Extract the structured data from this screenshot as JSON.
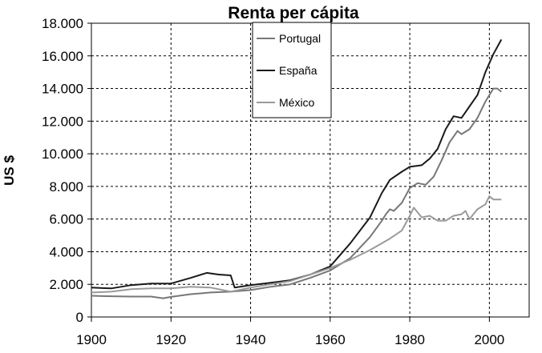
{
  "chart_data": {
    "type": "line",
    "title": "Renta per cápita",
    "xlabel": "",
    "ylabel": "US $",
    "xlim": [
      1900,
      2010
    ],
    "ylim": [
      0,
      18000
    ],
    "x_ticks": [
      1900,
      1920,
      1940,
      1960,
      1980,
      2000
    ],
    "x_tick_labels": [
      "1900",
      "1920",
      "1940",
      "1960",
      "1980",
      "2000"
    ],
    "y_ticks": [
      0,
      2000,
      4000,
      6000,
      8000,
      10000,
      12000,
      14000,
      16000,
      18000
    ],
    "y_tick_labels": [
      "0",
      "2.000",
      "4.000",
      "6.000",
      "8.000",
      "10.000",
      "12.000",
      "14.000",
      "16.000",
      "18.000"
    ],
    "grid": true,
    "legend_position": "top-center",
    "series": [
      {
        "name": "Portugal",
        "color": "#777777",
        "points": [
          [
            1900,
            1300
          ],
          [
            1905,
            1270
          ],
          [
            1910,
            1250
          ],
          [
            1915,
            1250
          ],
          [
            1918,
            1150
          ],
          [
            1920,
            1230
          ],
          [
            1925,
            1400
          ],
          [
            1930,
            1500
          ],
          [
            1935,
            1550
          ],
          [
            1940,
            1650
          ],
          [
            1945,
            1850
          ],
          [
            1950,
            2000
          ],
          [
            1955,
            2400
          ],
          [
            1960,
            2850
          ],
          [
            1965,
            3600
          ],
          [
            1970,
            4900
          ],
          [
            1973,
            5900
          ],
          [
            1974,
            6300
          ],
          [
            1975,
            6600
          ],
          [
            1976,
            6500
          ],
          [
            1978,
            7000
          ],
          [
            1980,
            7900
          ],
          [
            1982,
            8200
          ],
          [
            1984,
            8100
          ],
          [
            1986,
            8600
          ],
          [
            1988,
            9600
          ],
          [
            1990,
            10700
          ],
          [
            1992,
            11400
          ],
          [
            1993,
            11200
          ],
          [
            1995,
            11500
          ],
          [
            1997,
            12200
          ],
          [
            1999,
            13200
          ],
          [
            2001,
            14000
          ],
          [
            2002,
            14000
          ],
          [
            2003,
            13800
          ]
        ]
      },
      {
        "name": "España",
        "color": "#1a1a1a",
        "points": [
          [
            1900,
            1800
          ],
          [
            1905,
            1750
          ],
          [
            1910,
            1950
          ],
          [
            1915,
            2050
          ],
          [
            1920,
            2050
          ],
          [
            1925,
            2400
          ],
          [
            1929,
            2700
          ],
          [
            1932,
            2600
          ],
          [
            1935,
            2550
          ],
          [
            1936,
            1800
          ],
          [
            1940,
            1950
          ],
          [
            1945,
            2100
          ],
          [
            1950,
            2250
          ],
          [
            1955,
            2600
          ],
          [
            1960,
            3100
          ],
          [
            1965,
            4500
          ],
          [
            1970,
            6100
          ],
          [
            1973,
            7600
          ],
          [
            1975,
            8400
          ],
          [
            1978,
            8900
          ],
          [
            1980,
            9200
          ],
          [
            1983,
            9300
          ],
          [
            1985,
            9700
          ],
          [
            1987,
            10300
          ],
          [
            1989,
            11500
          ],
          [
            1991,
            12300
          ],
          [
            1993,
            12200
          ],
          [
            1995,
            12900
          ],
          [
            1997,
            13600
          ],
          [
            1999,
            15000
          ],
          [
            2001,
            16100
          ],
          [
            2003,
            17000
          ]
        ]
      },
      {
        "name": "México",
        "color": "#9a9a9a",
        "points": [
          [
            1900,
            1500
          ],
          [
            1905,
            1550
          ],
          [
            1910,
            1700
          ],
          [
            1915,
            1750
          ],
          [
            1920,
            1750
          ],
          [
            1925,
            1850
          ],
          [
            1930,
            1800
          ],
          [
            1935,
            1550
          ],
          [
            1940,
            1800
          ],
          [
            1945,
            2000
          ],
          [
            1950,
            2200
          ],
          [
            1955,
            2600
          ],
          [
            1960,
            3000
          ],
          [
            1965,
            3500
          ],
          [
            1970,
            4100
          ],
          [
            1975,
            4800
          ],
          [
            1978,
            5300
          ],
          [
            1980,
            6200
          ],
          [
            1981,
            6700
          ],
          [
            1983,
            6100
          ],
          [
            1985,
            6200
          ],
          [
            1987,
            5900
          ],
          [
            1989,
            5900
          ],
          [
            1991,
            6200
          ],
          [
            1993,
            6300
          ],
          [
            1994,
            6500
          ],
          [
            1995,
            6000
          ],
          [
            1997,
            6600
          ],
          [
            1999,
            6900
          ],
          [
            2000,
            7400
          ],
          [
            2001,
            7200
          ],
          [
            2003,
            7200
          ]
        ]
      }
    ]
  }
}
